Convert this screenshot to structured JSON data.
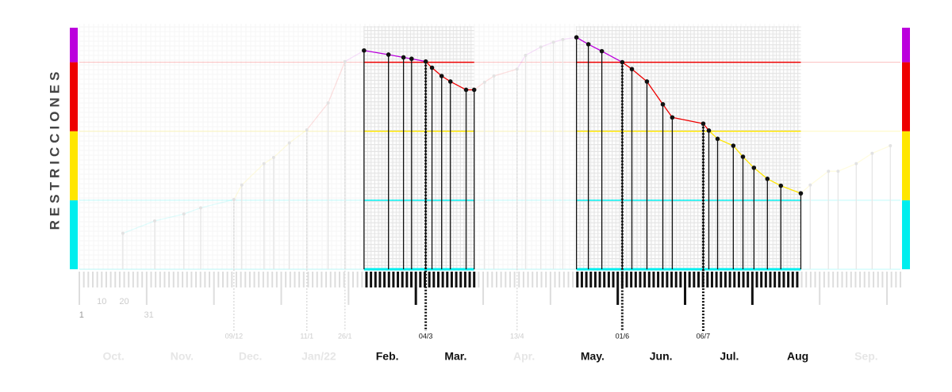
{
  "chart_data": {
    "type": "stem",
    "y_label": "RESTRICCIONES",
    "band_colors": [
      "#00eeee",
      "#ffe600",
      "#ee0000",
      "#bb00dd"
    ],
    "ylim": [
      0,
      3.5
    ],
    "yticks": [
      0,
      1,
      2,
      3
    ],
    "xlim": [
      0,
      366
    ],
    "xticks": [
      1,
      10,
      20,
      31
    ],
    "highlights": [
      [
        126.9,
        176.0
      ],
      [
        221.6,
        321.6
      ]
    ],
    "months": [
      "Oct.",
      "Nov.",
      "Dec.",
      "Jan/22",
      "Feb.",
      "Mar.",
      "Apr.",
      "May.",
      "Jun.",
      "Jul.",
      "Aug",
      "Sep."
    ],
    "x": [
      19.4,
      33.6,
      46.6,
      54.1,
      68.9,
      72.4,
      82.3,
      86.6,
      93.6,
      101.4,
      110.9,
      118.4,
      126.9,
      137.8,
      144.5,
      148.1,
      154.4,
      157.2,
      161.5,
      165.4,
      172.4,
      176.0,
      180.6,
      184.8,
      195.1,
      198.9,
      205.7,
      211.3,
      215.5,
      221.6,
      226.9,
      232.9,
      242.0,
      246.3,
      253.0,
      260.1,
      264.3,
      278.1,
      280.6,
      284.5,
      291.5,
      295.8,
      300.7,
      306.7,
      312.7,
      321.6,
      325.8,
      333.9,
      338.2,
      346.3,
      353.4,
      361.5
    ],
    "values": [
      0.52,
      0.7,
      0.8,
      0.89,
      1.01,
      1.22,
      1.53,
      1.62,
      1.83,
      2.02,
      2.41,
      3.01,
      3.17,
      3.11,
      3.07,
      3.05,
      3.01,
      2.92,
      2.8,
      2.72,
      2.6,
      2.6,
      2.71,
      2.8,
      2.9,
      3.1,
      3.22,
      3.29,
      3.33,
      3.36,
      3.26,
      3.16,
      3.0,
      2.9,
      2.72,
      2.39,
      2.2,
      2.11,
      2.01,
      1.89,
      1.79,
      1.63,
      1.47,
      1.31,
      1.21,
      1.1,
      1.22,
      1.42,
      1.42,
      1.53,
      1.68,
      1.79
    ],
    "annotations": [
      {
        "x": 68.9,
        "label": "09/12"
      },
      {
        "x": 101.4,
        "label": "11/1"
      },
      {
        "x": 118.4,
        "label": "26/1"
      },
      {
        "x": 154.4,
        "label": "04/3"
      },
      {
        "x": 195.1,
        "label": "13/4"
      },
      {
        "x": 242.0,
        "label": "01/6"
      },
      {
        "x": 278.1,
        "label": "06/7"
      }
    ]
  }
}
